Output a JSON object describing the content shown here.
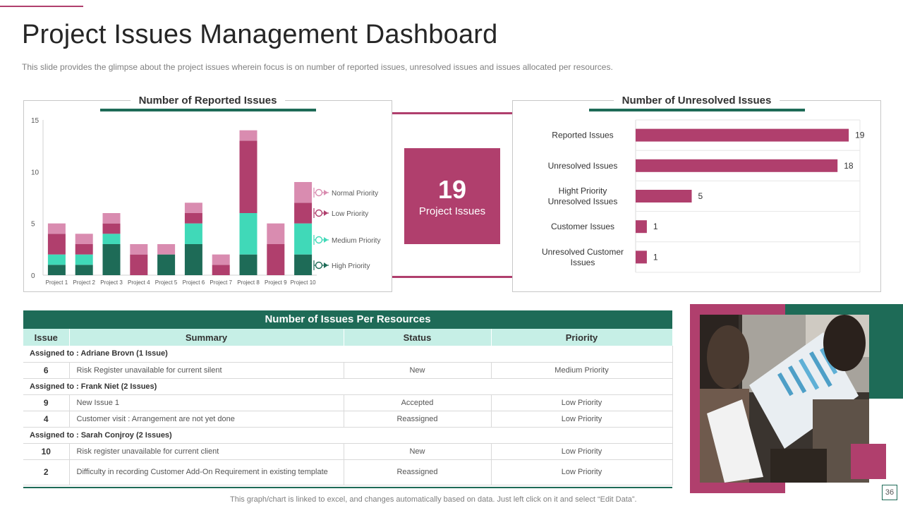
{
  "header": {
    "title": "Project Issues Management Dashboard",
    "subtitle": "This slide provides  the glimpse about the project issues wherein focus is on number of reported issues, unresolved  issues and issues allocated per resources."
  },
  "colors": {
    "normal": "#d98cb0",
    "low": "#b03f6d",
    "medium": "#40d9b8",
    "high": "#1e6b57",
    "accent": "#b03f6d",
    "green": "#1e6b57"
  },
  "kpi": {
    "value": "19",
    "label": "Project Issues"
  },
  "chart_data": [
    {
      "type": "bar",
      "stacked": true,
      "title": "Number of Reported Issues",
      "categories": [
        "Project 1",
        "Project 2",
        "Project 3",
        "Project 4",
        "Project 5",
        "Project 6",
        "Project 7",
        "Project 8",
        "Project 9",
        "Project 10"
      ],
      "series": [
        {
          "name": "High Priority",
          "values": [
            1,
            1,
            3,
            0,
            2,
            3,
            0,
            2,
            0,
            2
          ]
        },
        {
          "name": "Medium Priority",
          "values": [
            1,
            1,
            1,
            0,
            0,
            2,
            0,
            4,
            0,
            3
          ]
        },
        {
          "name": "Low Priority",
          "values": [
            2,
            1,
            1,
            2,
            0,
            1,
            1,
            7,
            3,
            2
          ]
        },
        {
          "name": "Normal Priority",
          "values": [
            1,
            1,
            1,
            1,
            1,
            1,
            1,
            1,
            2,
            2
          ]
        }
      ],
      "ylim": [
        0,
        15
      ],
      "yticks": [
        0,
        5,
        10,
        15
      ],
      "legend": [
        "Normal Priority",
        "Low Priority",
        "Medium Priority",
        "High Priority"
      ]
    },
    {
      "type": "bar",
      "orientation": "horizontal",
      "title": "Number of Unresolved Issues",
      "categories": [
        "Reported Issues",
        "Unresolved Issues",
        "Hight Priority|Unresolved Issues",
        "Customer Issues",
        "Unresolved Customer|Issues"
      ],
      "values": [
        19,
        18,
        5,
        1,
        1
      ],
      "xlim": [
        0,
        20
      ]
    }
  ],
  "table": {
    "title": "Number of Issues  Per Resources",
    "headers": {
      "issue": "Issue",
      "summary": "Summary",
      "status": "Status",
      "priority": "Priority"
    },
    "group1": "Assigned to : Adriane Brovn (1 Issue)",
    "r1": {
      "issue": "6",
      "summary": "Risk Register unavailable  for current silent",
      "status": "New",
      "priority": "Medium Priority"
    },
    "group2": "Assigned to : Frank Niet (2 Issues)",
    "r2": {
      "issue": "9",
      "summary": "New Issue 1",
      "status": "Accepted",
      "priority": "Low Priority"
    },
    "r3": {
      "issue": "4",
      "summary": "Customer visit : Arrangement are not yet done",
      "status": "Reassigned",
      "priority": "Low Priority"
    },
    "group3": "Assigned to : Sarah Conjroy (2 Issues)",
    "r4": {
      "issue": "10",
      "summary": "Risk register unavailable for current client",
      "status": "New",
      "priority": "Low Priority"
    },
    "r5": {
      "issue": "2",
      "summary": "Difficulty in recording Customer Add-On Requirement  in existing template",
      "status": "Reassigned",
      "priority": "Low Priority"
    }
  },
  "footer": {
    "note": "This graph/chart is linked to excel,  and changes automatically based on data. Just left click on it and select “Edit Data”.",
    "page": "36"
  }
}
